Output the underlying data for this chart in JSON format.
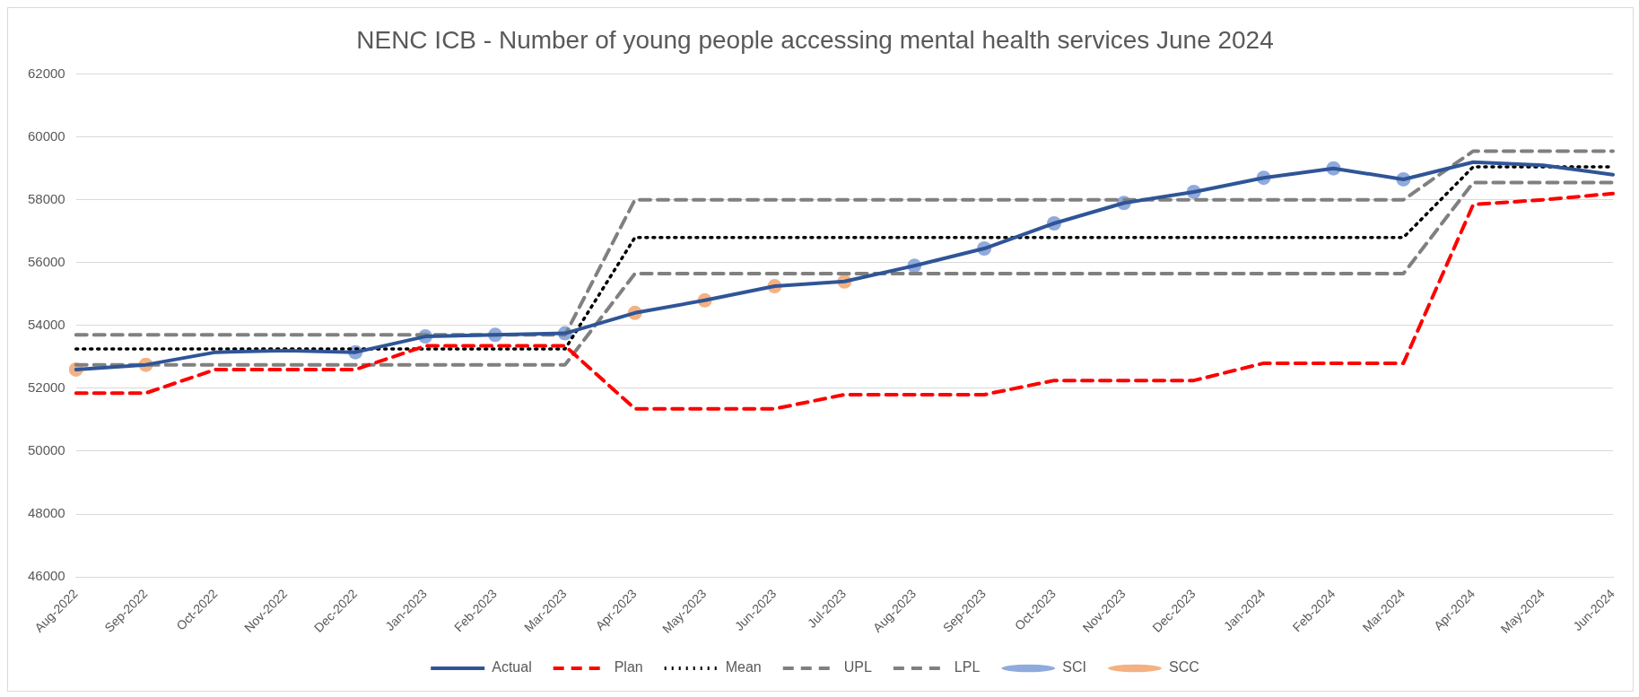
{
  "chart_data": {
    "type": "line",
    "title": "NENC ICB - Number of young people accessing mental health services June 2024",
    "categories": [
      "Aug-2022",
      "Sep-2022",
      "Oct-2022",
      "Nov-2022",
      "Dec-2022",
      "Jan-2023",
      "Feb-2023",
      "Mar-2023",
      "Apr-2023",
      "May-2023",
      "Jun-2023",
      "Jul-2023",
      "Aug-2023",
      "Sep-2023",
      "Oct-2023",
      "Nov-2023",
      "Dec-2023",
      "Jan-2024",
      "Feb-2024",
      "Mar-2024",
      "Apr-2024",
      "May-2024",
      "Jun-2024"
    ],
    "series": [
      {
        "name": "Actual",
        "type": "line",
        "line_style": "solid",
        "color": "#2f5597",
        "values": [
          52600,
          52750,
          53150,
          53200,
          53150,
          53650,
          53700,
          53750,
          54400,
          54800,
          55250,
          55400,
          55900,
          56450,
          57250,
          57900,
          58250,
          58700,
          59000,
          58650,
          59200,
          59100,
          58800
        ]
      },
      {
        "name": "Plan",
        "type": "line",
        "line_style": "dashed",
        "color": "#ff0000",
        "values": [
          51850,
          51850,
          52600,
          52600,
          52600,
          53350,
          53350,
          53350,
          51350,
          51350,
          51350,
          51800,
          51800,
          51800,
          52250,
          52250,
          52250,
          52800,
          52800,
          52800,
          57850,
          58000,
          58200
        ]
      },
      {
        "name": "Mean",
        "type": "line",
        "line_style": "dotted",
        "color": "#000000",
        "values": [
          53250,
          53250,
          53250,
          53250,
          53250,
          53250,
          53250,
          53250,
          56800,
          56800,
          56800,
          56800,
          56800,
          56800,
          56800,
          56800,
          56800,
          56800,
          56800,
          56800,
          59050,
          59050,
          59050
        ]
      },
      {
        "name": "UPL",
        "type": "line",
        "line_style": "dashed",
        "color": "#808080",
        "values": [
          53700,
          53700,
          53700,
          53700,
          53700,
          53700,
          53700,
          53700,
          58000,
          58000,
          58000,
          58000,
          58000,
          58000,
          58000,
          58000,
          58000,
          58000,
          58000,
          58000,
          59550,
          59550,
          59550
        ]
      },
      {
        "name": "LPL",
        "type": "line",
        "line_style": "dashed",
        "color": "#808080",
        "values": [
          52750,
          52750,
          52750,
          52750,
          52750,
          52750,
          52750,
          52750,
          55650,
          55650,
          55650,
          55650,
          55650,
          55650,
          55650,
          55650,
          55650,
          55650,
          55650,
          55650,
          58550,
          58550,
          58550
        ]
      },
      {
        "name": "SCI",
        "type": "scatter",
        "marker": "circle",
        "color": "#8faadc",
        "values": [
          null,
          null,
          null,
          null,
          53150,
          53650,
          53700,
          53750,
          null,
          null,
          null,
          null,
          55900,
          56450,
          57250,
          57900,
          58250,
          58700,
          59000,
          58650,
          null,
          null,
          null
        ]
      },
      {
        "name": "SCC",
        "type": "scatter",
        "marker": "circle",
        "color": "#f4b183",
        "values": [
          52600,
          52750,
          null,
          null,
          null,
          null,
          null,
          null,
          54400,
          54800,
          55250,
          55400,
          null,
          null,
          null,
          null,
          null,
          null,
          null,
          null,
          null,
          null,
          null
        ]
      }
    ],
    "ylim": [
      46000,
      62000
    ],
    "yticks": [
      46000,
      48000,
      50000,
      52000,
      54000,
      56000,
      58000,
      60000,
      62000
    ],
    "grid": "y",
    "legend": "bottom",
    "marker": "none"
  }
}
